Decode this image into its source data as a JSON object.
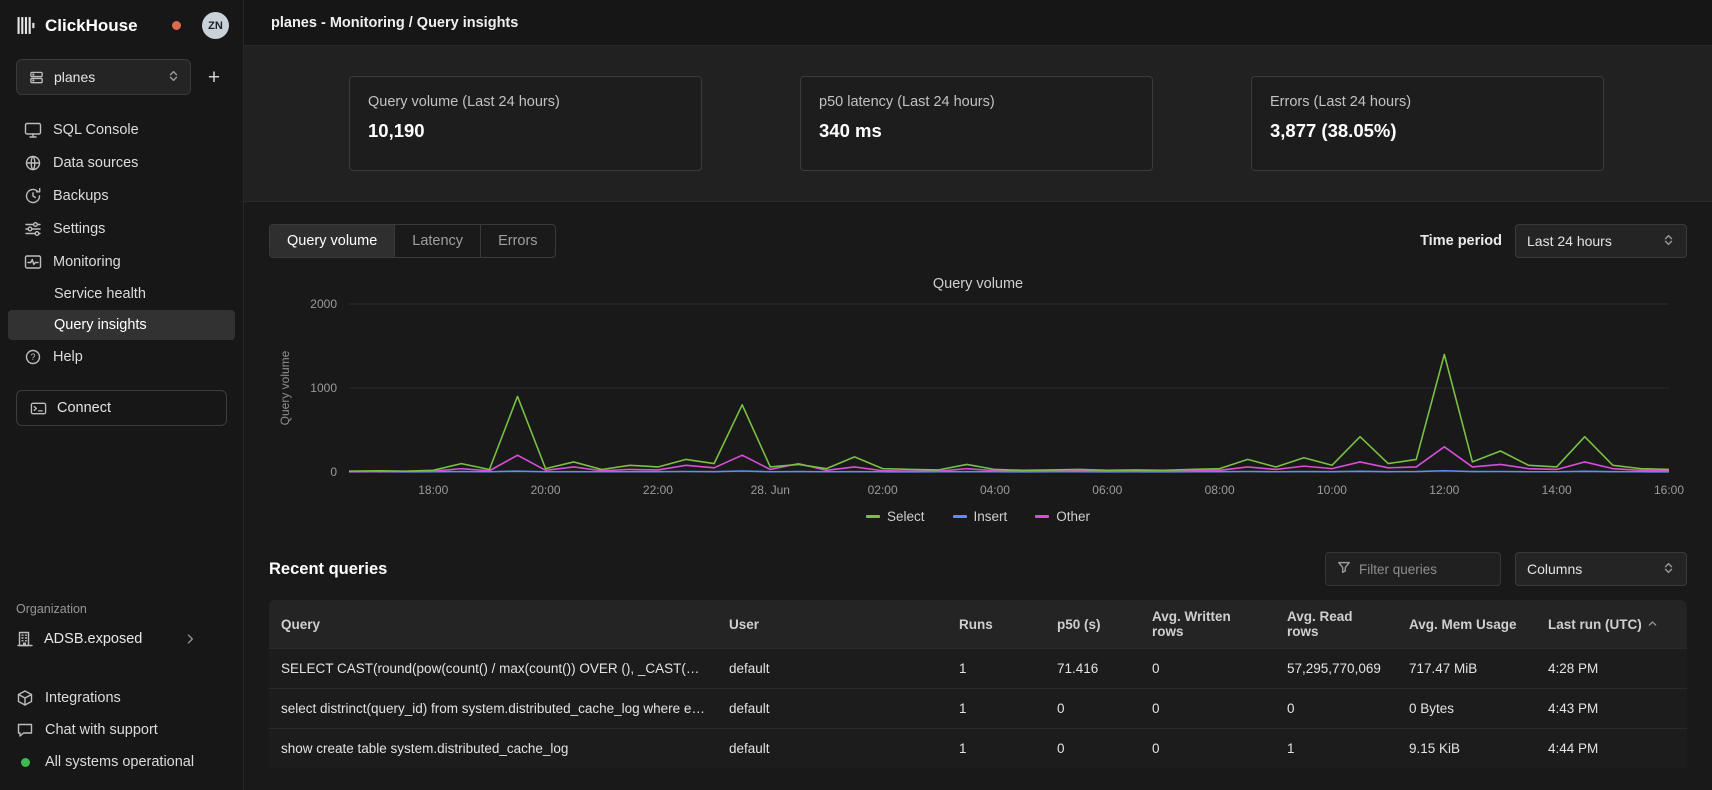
{
  "app": {
    "name": "ClickHouse",
    "avatar": "ZN"
  },
  "topbar": {
    "title": "planes - Monitoring / Query insights"
  },
  "sidebar": {
    "service": "planes",
    "add_label": "+",
    "items": [
      {
        "label": "SQL Console"
      },
      {
        "label": "Data sources"
      },
      {
        "label": "Backups"
      },
      {
        "label": "Settings"
      },
      {
        "label": "Monitoring"
      },
      {
        "label": "Service health"
      },
      {
        "label": "Query insights"
      },
      {
        "label": "Help"
      }
    ],
    "connect": "Connect",
    "org_label": "Organization",
    "org_name": "ADSB.exposed",
    "footer": [
      {
        "label": "Integrations"
      },
      {
        "label": "Chat with support"
      },
      {
        "label": "All systems operational"
      }
    ]
  },
  "stats": [
    {
      "label": "Query volume (Last 24 hours)",
      "value": "10,190"
    },
    {
      "label": "p50 latency (Last 24 hours)",
      "value": "340 ms"
    },
    {
      "label": "Errors (Last 24 hours)",
      "value": "3,877 (38.05%)"
    }
  ],
  "tabs": [
    {
      "label": "Query volume"
    },
    {
      "label": "Latency"
    },
    {
      "label": "Errors"
    }
  ],
  "time_period": {
    "label": "Time period",
    "value": "Last 24 hours"
  },
  "chart_data": {
    "type": "line",
    "title": "Query volume",
    "ylabel": "Query volume",
    "ylim": [
      0,
      2000
    ],
    "yticks": [
      0,
      1000,
      2000
    ],
    "grid": true,
    "legend_position": "bottom",
    "x_tick_labels": [
      "18:00",
      "20:00",
      "22:00",
      "28. Jun",
      "02:00",
      "04:00",
      "06:00",
      "08:00",
      "10:00",
      "12:00",
      "14:00",
      "16:00"
    ],
    "x_tick_indices": [
      3,
      7,
      11,
      15,
      19,
      23,
      27,
      31,
      35,
      39,
      43,
      47
    ],
    "series": [
      {
        "name": "Select",
        "color": "#78c043",
        "values": [
          10,
          15,
          10,
          20,
          100,
          30,
          900,
          40,
          120,
          30,
          80,
          60,
          150,
          100,
          800,
          60,
          90,
          40,
          180,
          40,
          30,
          25,
          90,
          30,
          20,
          25,
          30,
          20,
          25,
          20,
          30,
          40,
          150,
          60,
          170,
          80,
          420,
          100,
          150,
          1400,
          120,
          250,
          80,
          60,
          420,
          80,
          40,
          30
        ]
      },
      {
        "name": "Insert",
        "color": "#5b8ff9",
        "values": [
          2,
          3,
          2,
          3,
          5,
          3,
          10,
          3,
          4,
          3,
          3,
          4,
          6,
          4,
          12,
          3,
          5,
          3,
          4,
          3,
          2,
          3,
          4,
          3,
          2,
          3,
          3,
          2,
          3,
          2,
          3,
          4,
          6,
          3,
          5,
          4,
          8,
          4,
          5,
          15,
          5,
          6,
          3,
          3,
          8,
          4,
          3,
          2
        ]
      },
      {
        "name": "Other",
        "color": "#d64fd6",
        "values": [
          5,
          5,
          8,
          10,
          40,
          15,
          200,
          20,
          60,
          15,
          30,
          25,
          80,
          50,
          200,
          30,
          100,
          20,
          60,
          15,
          10,
          10,
          40,
          15,
          10,
          10,
          15,
          10,
          10,
          10,
          15,
          20,
          60,
          30,
          70,
          40,
          120,
          50,
          60,
          300,
          60,
          90,
          40,
          30,
          120,
          40,
          20,
          15
        ]
      }
    ]
  },
  "recent": {
    "title": "Recent queries",
    "filter_placeholder": "Filter queries",
    "columns": "Columns",
    "headers": [
      "Query",
      "User",
      "Runs",
      "p50 (s)",
      "Avg. Written rows",
      "Avg. Read rows",
      "Avg. Mem Usage",
      "Last run (UTC)"
    ],
    "rows": [
      [
        "SELECT CAST(round(pow(count() / max(count()) OVER (), _CAST(?..)) * ...",
        "default",
        "1",
        "71.416",
        "0",
        "57,295,770,069",
        "717.47 MiB",
        "4:28 PM"
      ],
      [
        "select distrinct(query_id) from system.distributed_cache_log where eve...",
        "default",
        "1",
        "0",
        "0",
        "0",
        "0 Bytes",
        "4:43 PM"
      ],
      [
        "show create table system.distributed_cache_log",
        "default",
        "1",
        "0",
        "0",
        "1",
        "9.15 KiB",
        "4:44 PM"
      ]
    ]
  },
  "colors": {
    "status_ok": "#3fb950",
    "alert_dot": "#dd6a4f",
    "accent_select": "#78c043",
    "accent_insert": "#5b8ff9",
    "accent_other": "#d64fd6"
  }
}
